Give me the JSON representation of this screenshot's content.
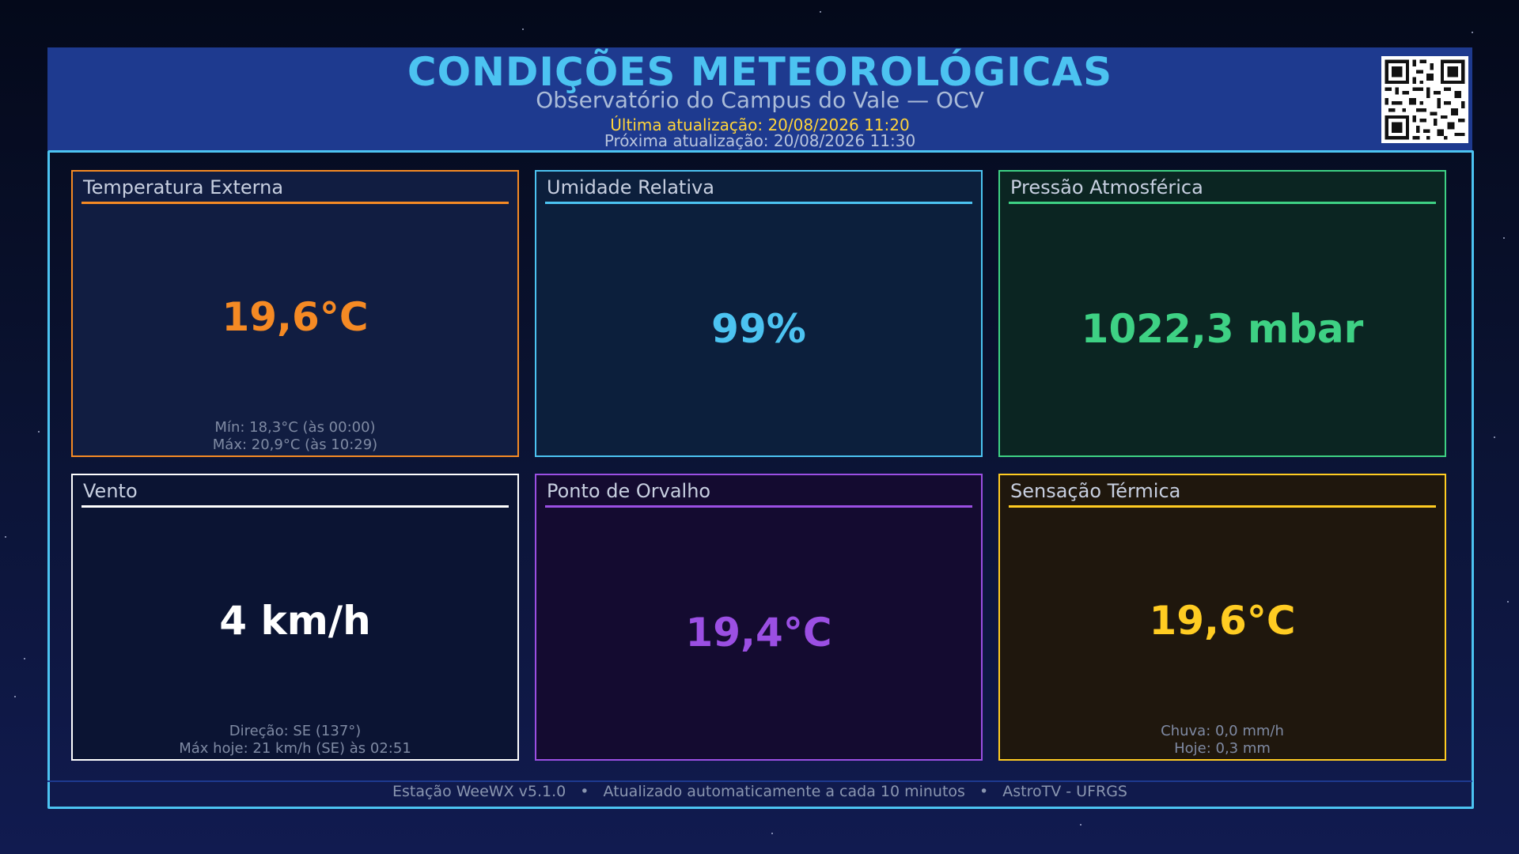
{
  "header": {
    "title": "CONDIÇÕES METEOROLÓGICAS",
    "subtitle": "Observatório do Campus do Vale — OCV",
    "last_update": "Última atualização: 20/08/2026 11:20",
    "next_update": "Próxima atualização: 20/08/2026 11:30"
  },
  "cards": {
    "temperature": {
      "title": "Temperatura Externa",
      "value": "19,6°C",
      "note1": "Mín: 18,3°C (às 00:00)",
      "note2": "Máx: 20,9°C (às 10:29)",
      "color": "#f58a24"
    },
    "humidity": {
      "title": "Umidade Relativa",
      "value": "99%",
      "color": "#4cc3f1"
    },
    "pressure": {
      "title": "Pressão Atmosférica",
      "value": "1022,3 mbar",
      "color": "#3ed184"
    },
    "wind": {
      "title": "Vento",
      "value": "4 km/h",
      "note1": "Direção: SE (137°)",
      "note2": "Máx hoje: 21 km/h (SE) às 02:51",
      "color": "#ffffff"
    },
    "dewpoint": {
      "title": "Ponto de Orvalho",
      "value": "19,4°C",
      "color": "#9b4fe3"
    },
    "heat_index": {
      "title": "Sensação Térmica",
      "value": "19,6°C",
      "note1": "Chuva: 0,0 mm/h",
      "note2": "Hoje: 0,3 mm",
      "color": "#ffcc22"
    }
  },
  "footer": {
    "station": "Estação WeeWX v5.1.0",
    "auto": "Atualizado automaticamente a cada 10 minutos",
    "credit": "AstroTV - UFRGS",
    "separator": "•"
  },
  "colors": {
    "title": "#4cc3f1",
    "header_bg": "#1e3a8f",
    "frame": "#4cc3f1",
    "highlight": "#ffd43b"
  },
  "icons": {
    "qr": "qr-code-icon"
  }
}
